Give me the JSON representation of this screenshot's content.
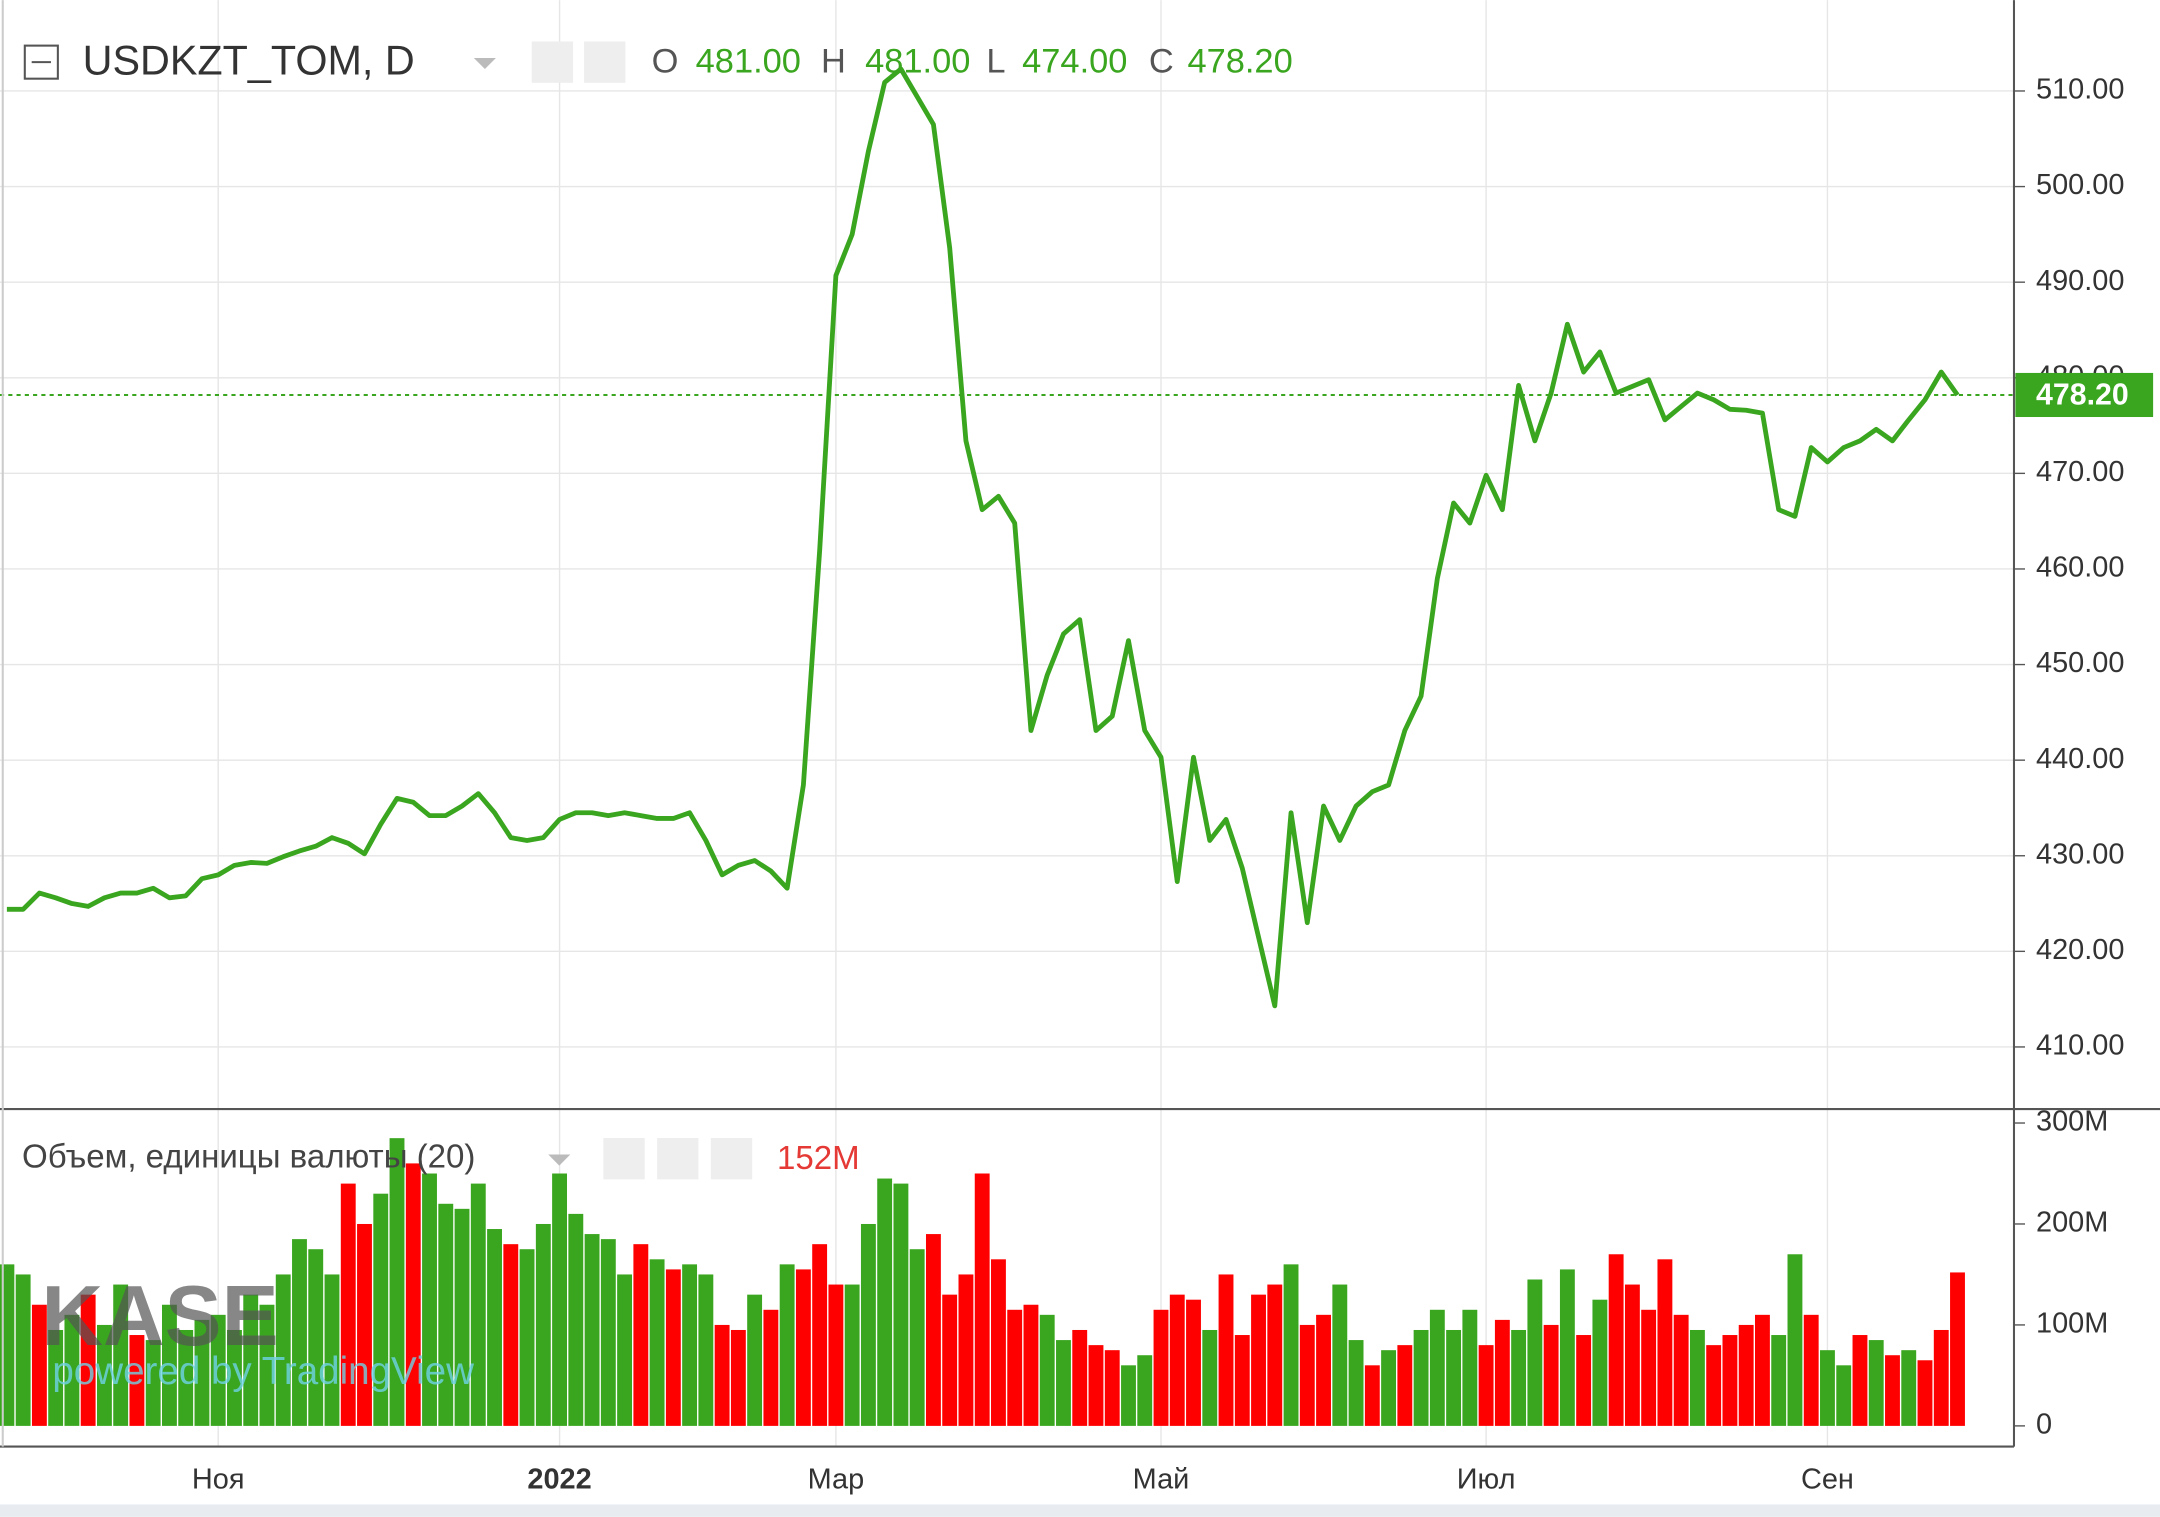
{
  "chart_data": [
    {
      "type": "line",
      "title": "USDKZT_TOM, D",
      "ohlc": [
        {
          "key": "O",
          "text": "481.00"
        },
        {
          "key": "H",
          "text": "481.00"
        },
        {
          "key": "L",
          "text": "474.00"
        },
        {
          "key": "C",
          "text": "478.20"
        }
      ],
      "color": "#3aa61f",
      "values": [
        424.4,
        424.4,
        426.1,
        425.6,
        425,
        424.7,
        425.6,
        426.1,
        426.1,
        426.6,
        425.6,
        425.8,
        427.6,
        428,
        429,
        429.3,
        429.2,
        429.9,
        430.5,
        431,
        431.9,
        431.3,
        430.2,
        433.3,
        436,
        435.6,
        434.2,
        434.2,
        435.2,
        436.5,
        434.5,
        431.9,
        431.6,
        431.9,
        433.8,
        434.5,
        434.5,
        434.2,
        434.5,
        434.2,
        433.9,
        433.9,
        434.5,
        431.6,
        428,
        429,
        429.5,
        428.4,
        426.6,
        437.4,
        461.9,
        490.7,
        495,
        503.7,
        510.9,
        512.3,
        509.4,
        506.5,
        493.6,
        473.4,
        466.2,
        467.6,
        464.8,
        443.1,
        448.9,
        453.2,
        454.7,
        443.1,
        444.6,
        452.5,
        443.1,
        440.3,
        427.3,
        440.3,
        431.6,
        433.8,
        428.7,
        421.5,
        414.3,
        434.5,
        423,
        435.2,
        431.6,
        435.2,
        436.7,
        437.4,
        443.1,
        446.7,
        459,
        466.9,
        464.8,
        469.8,
        466.2,
        479.2,
        473.4,
        478.4,
        485.6,
        480.6,
        482.7,
        478.4,
        479.1,
        479.8,
        475.6,
        477,
        478.4,
        477.7,
        476.7,
        476.6,
        476.3,
        466.2,
        465.5,
        472.7,
        471.2,
        472.7,
        473.4,
        474.6,
        473.4,
        475.6,
        477.7,
        480.6,
        478.2
      ],
      "last_price": {
        "value": 478.2,
        "label": "478.20"
      },
      "ylim": [
        403.5,
        519.5
      ],
      "yticks": [
        {
          "value": 410,
          "label": "410.00"
        },
        {
          "value": 420,
          "label": "420.00"
        },
        {
          "value": 430,
          "label": "430.00"
        },
        {
          "value": 440,
          "label": "440.00"
        },
        {
          "value": 450,
          "label": "450.00"
        },
        {
          "value": 460,
          "label": "460.00"
        },
        {
          "value": 470,
          "label": "470.00"
        },
        {
          "value": 480,
          "label": "480.00"
        },
        {
          "value": 490,
          "label": "490.00"
        },
        {
          "value": 500,
          "label": "500.00"
        },
        {
          "value": 510,
          "label": "510.00"
        }
      ],
      "grid": true
    },
    {
      "type": "bar",
      "title": "Объем, единицы валюты (20)",
      "current_value": "152M",
      "watermark": "KASE",
      "watermark_sub": "powered by TradingView",
      "categories": [
        null,
        null,
        null,
        null,
        null,
        null,
        null,
        null,
        null,
        null,
        null,
        null,
        null,
        "Ноя",
        null,
        null,
        null,
        null,
        null,
        null,
        null,
        null,
        null,
        null,
        null,
        null,
        null,
        null,
        null,
        null,
        null,
        null,
        null,
        null,
        "2022",
        null,
        null,
        null,
        null,
        null,
        null,
        null,
        null,
        null,
        null,
        null,
        null,
        null,
        null,
        null,
        null,
        "Мар",
        null,
        null,
        null,
        null,
        null,
        null,
        null,
        null,
        null,
        null,
        null,
        null,
        null,
        null,
        null,
        null,
        null,
        null,
        null,
        "Май",
        null,
        null,
        null,
        null,
        null,
        null,
        null,
        null,
        null,
        null,
        null,
        null,
        null,
        null,
        null,
        null,
        null,
        null,
        null,
        "Июл",
        null,
        null,
        null,
        null,
        null,
        null,
        null,
        null,
        null,
        null,
        null,
        null,
        null,
        null,
        null,
        null,
        null,
        null,
        null,
        null,
        "Сен",
        null,
        null,
        null,
        null,
        null,
        null,
        null,
        null
      ],
      "values": [
        160000000,
        150000000,
        120000000,
        95000000,
        110000000,
        130000000,
        100000000,
        140000000,
        90000000,
        85000000,
        120000000,
        95000000,
        105000000,
        110000000,
        95000000,
        130000000,
        120000000,
        150000000,
        185000000,
        175000000,
        150000000,
        240000000,
        200000000,
        230000000,
        285000000,
        260000000,
        250000000,
        220000000,
        215000000,
        240000000,
        195000000,
        180000000,
        175000000,
        200000000,
        250000000,
        210000000,
        190000000,
        185000000,
        150000000,
        180000000,
        165000000,
        155000000,
        160000000,
        150000000,
        100000000,
        95000000,
        130000000,
        115000000,
        160000000,
        155000000,
        180000000,
        140000000,
        140000000,
        200000000,
        245000000,
        240000000,
        175000000,
        190000000,
        130000000,
        150000000,
        250000000,
        165000000,
        115000000,
        120000000,
        110000000,
        85000000,
        95000000,
        80000000,
        75000000,
        60000000,
        70000000,
        115000000,
        130000000,
        125000000,
        95000000,
        150000000,
        90000000,
        130000000,
        140000000,
        160000000,
        100000000,
        110000000,
        140000000,
        85000000,
        60000000,
        75000000,
        80000000,
        95000000,
        115000000,
        95000000,
        115000000,
        80000000,
        105000000,
        95000000,
        145000000,
        100000000,
        155000000,
        90000000,
        125000000,
        170000000,
        140000000,
        115000000,
        165000000,
        110000000,
        95000000,
        80000000,
        90000000,
        100000000,
        110000000,
        90000000,
        170000000,
        110000000,
        75000000,
        60000000,
        90000000,
        85000000,
        70000000,
        75000000,
        65000000,
        95000000,
        152000000
      ],
      "colors": [
        "#3aa61f",
        "#3aa61f",
        "#ff0000",
        "#3aa61f",
        "#3aa61f",
        "#ff0000",
        "#3aa61f",
        "#3aa61f",
        "#ff0000",
        "#3aa61f",
        "#3aa61f",
        "#3aa61f",
        "#3aa61f",
        "#3aa61f",
        "#3aa61f",
        "#3aa61f",
        "#3aa61f",
        "#3aa61f",
        "#3aa61f",
        "#3aa61f",
        "#3aa61f",
        "#ff0000",
        "#ff0000",
        "#3aa61f",
        "#3aa61f",
        "#ff0000",
        "#3aa61f",
        "#3aa61f",
        "#3aa61f",
        "#3aa61f",
        "#3aa61f",
        "#ff0000",
        "#3aa61f",
        "#3aa61f",
        "#3aa61f",
        "#3aa61f",
        "#3aa61f",
        "#3aa61f",
        "#3aa61f",
        "#ff0000",
        "#3aa61f",
        "#ff0000",
        "#3aa61f",
        "#3aa61f",
        "#ff0000",
        "#ff0000",
        "#3aa61f",
        "#ff0000",
        "#3aa61f",
        "#ff0000",
        "#ff0000",
        "#ff0000",
        "#3aa61f",
        "#3aa61f",
        "#3aa61f",
        "#3aa61f",
        "#3aa61f",
        "#ff0000",
        "#ff0000",
        "#ff0000",
        "#ff0000",
        "#ff0000",
        "#ff0000",
        "#ff0000",
        "#3aa61f",
        "#3aa61f",
        "#ff0000",
        "#ff0000",
        "#ff0000",
        "#3aa61f",
        "#3aa61f",
        "#ff0000",
        "#ff0000",
        "#ff0000",
        "#3aa61f",
        "#ff0000",
        "#ff0000",
        "#ff0000",
        "#ff0000",
        "#3aa61f",
        "#ff0000",
        "#ff0000",
        "#3aa61f",
        "#3aa61f",
        "#ff0000",
        "#3aa61f",
        "#ff0000",
        "#3aa61f",
        "#3aa61f",
        "#3aa61f",
        "#3aa61f",
        "#ff0000",
        "#ff0000",
        "#3aa61f",
        "#3aa61f",
        "#ff0000",
        "#3aa61f",
        "#ff0000",
        "#3aa61f",
        "#ff0000",
        "#ff0000",
        "#ff0000",
        "#ff0000",
        "#ff0000",
        "#3aa61f",
        "#ff0000",
        "#ff0000",
        "#ff0000",
        "#ff0000",
        "#3aa61f",
        "#3aa61f",
        "#ff0000",
        "#3aa61f",
        "#3aa61f",
        "#ff0000",
        "#3aa61f",
        "#ff0000",
        "#3aa61f",
        "#ff0000",
        "#ff0000",
        "#ff0000"
      ],
      "ylim": [
        -20500000,
        313800000
      ],
      "yticks": [
        0,
        {
          "value": 100000000,
          "label": "100M"
        },
        {
          "value": 200000000,
          "label": "200M"
        },
        {
          "value": 300000000,
          "label": "300M"
        }
      ]
    }
  ]
}
